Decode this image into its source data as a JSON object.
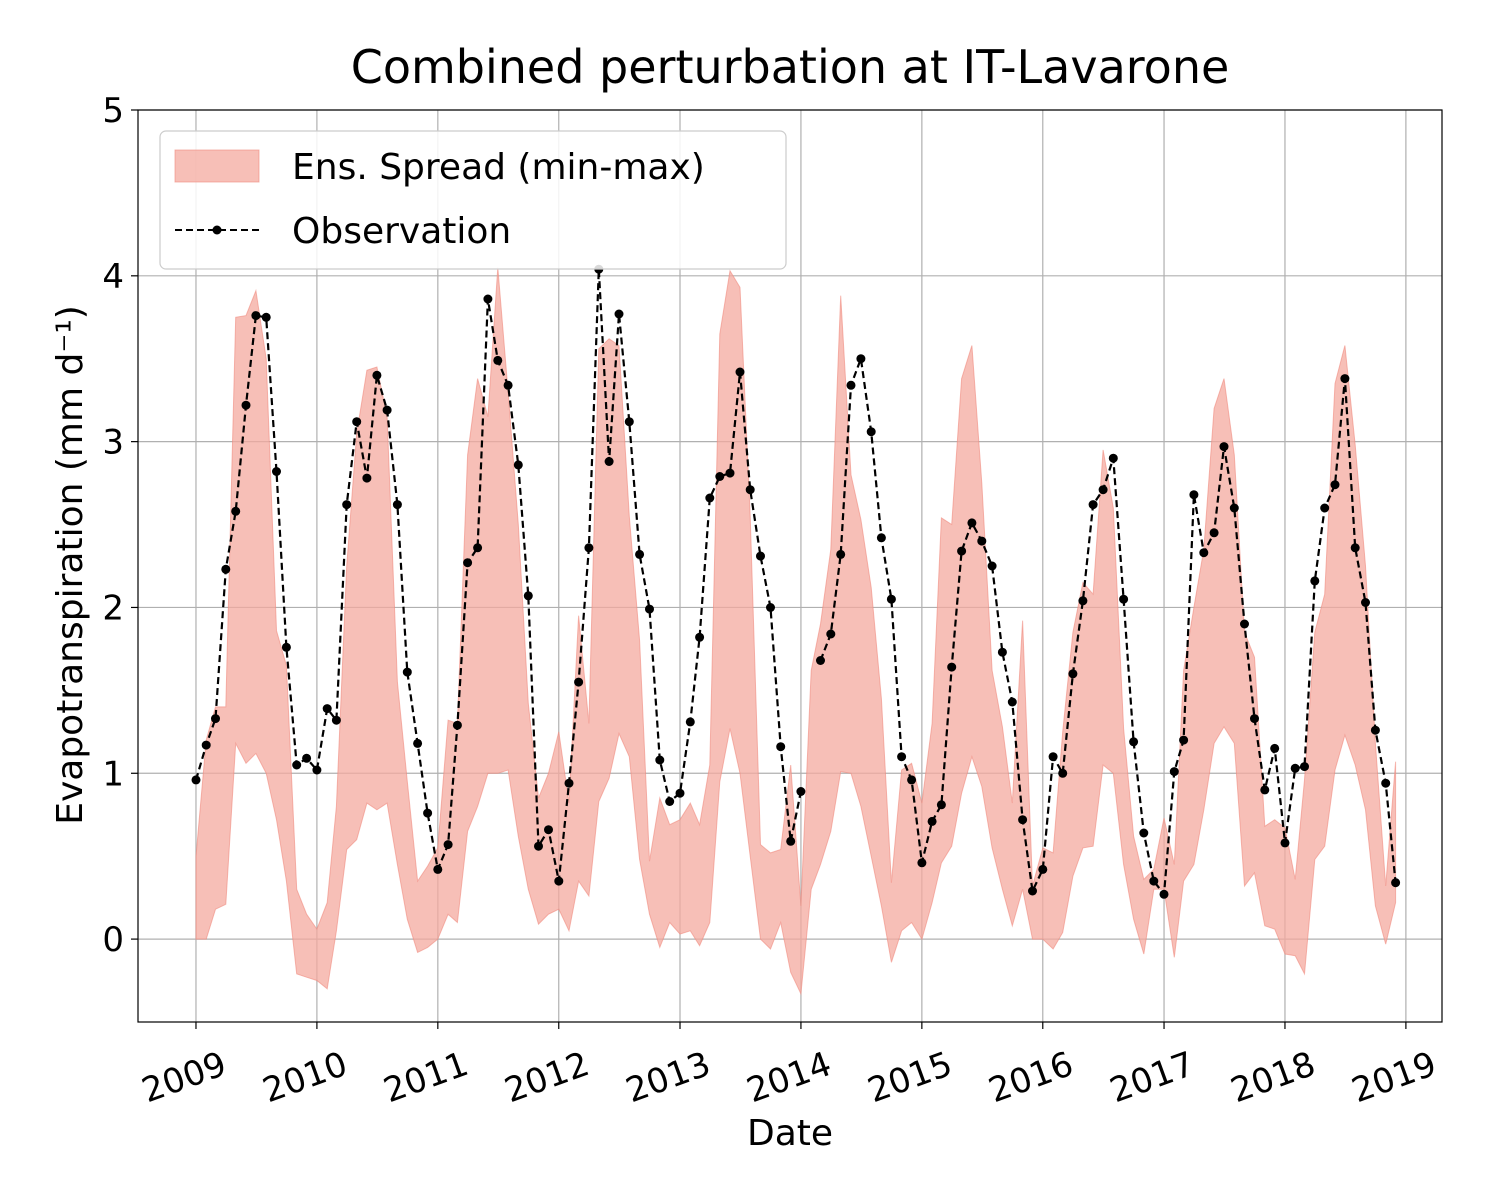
{
  "chart_data": {
    "type": "line",
    "title": "Combined perturbation at IT-Lavarone",
    "xlabel": "Date",
    "ylabel": "Evapotranspiration  (mm d⁻¹)",
    "xlim": [
      "2008-07-10",
      "2019-04-20"
    ],
    "ylim": [
      -0.5,
      5
    ],
    "yticks": [
      0,
      1,
      2,
      3,
      4,
      5
    ],
    "xticks": [
      "2009-01-01",
      "2010-01-01",
      "2011-01-01",
      "2012-01-01",
      "2013-01-01",
      "2014-01-01",
      "2015-01-01",
      "2016-01-01",
      "2017-01-01",
      "2018-01-01",
      "2019-01-01"
    ],
    "xtick_labels": [
      "2009",
      "2010",
      "2011",
      "2012",
      "2013",
      "2014",
      "2015",
      "2016",
      "2017",
      "2018",
      "2019"
    ],
    "grid": true,
    "legend": {
      "placement": "upper-left",
      "entries": [
        {
          "label": "Ens. Spread (min-max)",
          "style": "fill"
        },
        {
          "label": "Observation",
          "style": "dashed-line-dots"
        }
      ]
    },
    "colors": {
      "spread_fill": "#f4a99f",
      "spread_edge": "#f08a7e",
      "observation": "#000000",
      "grid": "#b0b0b0"
    },
    "series": [
      {
        "name": "Ens. Spread (min-max)",
        "kind": "band",
        "x": [
          "2009-01",
          "2009-02",
          "2009-03",
          "2009-04",
          "2009-05",
          "2009-06",
          "2009-07",
          "2009-08",
          "2009-09",
          "2009-10",
          "2009-11",
          "2009-12",
          "2010-01",
          "2010-02",
          "2010-03",
          "2010-04",
          "2010-05",
          "2010-06",
          "2010-07",
          "2010-08",
          "2010-09",
          "2010-10",
          "2010-11",
          "2010-12",
          "2011-01",
          "2011-02",
          "2011-03",
          "2011-04",
          "2011-05",
          "2011-06",
          "2011-07",
          "2011-08",
          "2011-09",
          "2011-10",
          "2011-11",
          "2011-12",
          "2012-01",
          "2012-02",
          "2012-03",
          "2012-04",
          "2012-05",
          "2012-06",
          "2012-07",
          "2012-08",
          "2012-09",
          "2012-10",
          "2012-11",
          "2012-12",
          "2013-01",
          "2013-02",
          "2013-03",
          "2013-04",
          "2013-05",
          "2013-06",
          "2013-07",
          "2013-08",
          "2013-09",
          "2013-10",
          "2013-11",
          "2013-12",
          "2014-01",
          "2014-02",
          "2014-03",
          "2014-04",
          "2014-05",
          "2014-06",
          "2014-07",
          "2014-08",
          "2014-09",
          "2014-10",
          "2014-11",
          "2014-12",
          "2015-01",
          "2015-02",
          "2015-03",
          "2015-04",
          "2015-05",
          "2015-06",
          "2015-07",
          "2015-08",
          "2015-09",
          "2015-10",
          "2015-11",
          "2015-12",
          "2016-01",
          "2016-02",
          "2016-03",
          "2016-04",
          "2016-05",
          "2016-06",
          "2016-07",
          "2016-08",
          "2016-09",
          "2016-10",
          "2016-11",
          "2016-12",
          "2017-01",
          "2017-02",
          "2017-03",
          "2017-04",
          "2017-05",
          "2017-06",
          "2017-07",
          "2017-08",
          "2017-09",
          "2017-10",
          "2017-11",
          "2017-12",
          "2018-01",
          "2018-02",
          "2018-03",
          "2018-04",
          "2018-05",
          "2018-06",
          "2018-07",
          "2018-08",
          "2018-09",
          "2018-10",
          "2018-11",
          "2018-12"
        ],
        "lower": [
          0.0,
          0.0,
          0.18,
          0.21,
          1.18,
          1.06,
          1.12,
          1.0,
          0.72,
          0.35,
          -0.21,
          -0.23,
          -0.25,
          -0.3,
          0.05,
          0.54,
          0.6,
          0.82,
          0.78,
          0.82,
          0.45,
          0.12,
          -0.08,
          -0.05,
          0.0,
          0.15,
          0.1,
          0.65,
          0.8,
          1.0,
          1.0,
          1.02,
          0.62,
          0.3,
          0.09,
          0.15,
          0.18,
          0.05,
          0.35,
          0.26,
          0.83,
          0.97,
          1.24,
          1.1,
          0.48,
          0.15,
          -0.05,
          0.1,
          0.03,
          0.05,
          -0.04,
          0.1,
          0.95,
          1.27,
          1.0,
          0.5,
          0.0,
          -0.06,
          0.1,
          -0.2,
          -0.33,
          0.3,
          0.45,
          0.65,
          1.01,
          1.0,
          0.8,
          0.5,
          0.2,
          -0.14,
          0.05,
          0.1,
          0.0,
          0.22,
          0.46,
          0.56,
          0.88,
          1.1,
          0.92,
          0.55,
          0.3,
          0.08,
          0.3,
          -0.0,
          0.0,
          -0.06,
          0.04,
          0.38,
          0.55,
          0.56,
          1.05,
          1.0,
          0.45,
          0.12,
          -0.09,
          0.3,
          0.3,
          -0.11,
          0.35,
          0.45,
          0.78,
          1.18,
          1.28,
          1.18,
          0.32,
          0.4,
          0.08,
          0.06,
          -0.09,
          -0.1,
          -0.21,
          0.48,
          0.56,
          1.02,
          1.23,
          1.05,
          0.78,
          0.2,
          -0.03,
          0.22
        ],
        "upper": [
          0.5,
          1.2,
          1.4,
          1.4,
          3.75,
          3.76,
          3.91,
          3.5,
          1.86,
          1.65,
          0.3,
          0.15,
          0.06,
          0.22,
          0.8,
          2.25,
          3.05,
          3.43,
          3.45,
          3.15,
          1.55,
          0.95,
          0.35,
          0.44,
          0.55,
          1.32,
          1.3,
          2.92,
          3.38,
          3.15,
          4.05,
          3.3,
          2.5,
          1.42,
          0.85,
          1.0,
          1.25,
          0.82,
          1.95,
          1.3,
          3.56,
          3.62,
          3.58,
          2.55,
          1.8,
          0.47,
          0.85,
          0.69,
          0.72,
          0.82,
          0.69,
          1.05,
          3.65,
          4.03,
          3.93,
          2.55,
          0.57,
          0.52,
          0.54,
          1.05,
          0.2,
          1.62,
          1.9,
          2.35,
          3.88,
          2.8,
          2.53,
          2.12,
          1.45,
          0.34,
          1.02,
          1.06,
          0.82,
          1.3,
          2.54,
          2.5,
          3.38,
          3.58,
          2.75,
          1.62,
          1.28,
          0.82,
          1.92,
          0.32,
          0.55,
          0.52,
          1.25,
          1.85,
          2.15,
          2.08,
          2.95,
          2.6,
          1.27,
          0.62,
          0.36,
          0.42,
          0.73,
          0.45,
          1.62,
          2.0,
          2.35,
          3.2,
          3.38,
          2.92,
          1.85,
          1.7,
          0.68,
          0.72,
          0.67,
          0.36,
          0.96,
          1.85,
          2.08,
          3.35,
          3.58,
          2.98,
          2.25,
          1.18,
          0.32,
          1.07
        ]
      },
      {
        "name": "Observation",
        "kind": "line",
        "x": [
          "2009-01",
          "2009-02",
          "2009-03",
          "2009-04",
          "2009-05",
          "2009-06",
          "2009-07",
          "2009-08",
          "2009-09",
          "2009-10",
          "2009-11",
          "2009-12",
          "2010-01",
          "2010-02",
          "2010-03",
          "2010-04",
          "2010-05",
          "2010-06",
          "2010-07",
          "2010-08",
          "2010-09",
          "2010-10",
          "2010-11",
          "2010-12",
          "2011-01",
          "2011-02",
          "2011-03",
          "2011-04",
          "2011-05",
          "2011-06",
          "2011-07",
          "2011-08",
          "2011-09",
          "2011-10",
          "2011-11",
          "2011-12",
          "2012-01",
          "2012-02",
          "2012-03",
          "2012-04",
          "2012-05",
          "2012-06",
          "2012-07",
          "2012-08",
          "2012-09",
          "2012-10",
          "2012-11",
          "2012-12",
          "2013-01",
          "2013-02",
          "2013-03",
          "2013-04",
          "2013-05",
          "2013-06",
          "2013-07",
          "2013-08",
          "2013-09",
          "2013-10",
          "2013-11",
          "2013-12",
          "2014-01",
          "2014-02",
          "2014-03",
          "2014-04",
          "2014-05",
          "2014-06",
          "2014-07",
          "2014-08",
          "2014-09",
          "2014-10",
          "2014-11",
          "2014-12",
          "2015-01",
          "2015-02",
          "2015-03",
          "2015-04",
          "2015-05",
          "2015-06",
          "2015-07",
          "2015-08",
          "2015-09",
          "2015-10",
          "2015-11",
          "2015-12",
          "2016-01",
          "2016-02",
          "2016-03",
          "2016-04",
          "2016-05",
          "2016-06",
          "2016-07",
          "2016-08",
          "2016-09",
          "2016-10",
          "2016-11",
          "2016-12",
          "2017-01",
          "2017-02",
          "2017-03",
          "2017-04",
          "2017-05",
          "2017-06",
          "2017-07",
          "2017-08",
          "2017-09",
          "2017-10",
          "2017-11",
          "2017-12",
          "2018-01",
          "2018-02",
          "2018-03",
          "2018-04",
          "2018-05",
          "2018-06",
          "2018-07",
          "2018-08",
          "2018-09",
          "2018-10",
          "2018-11",
          "2018-12"
        ],
        "y": [
          0.96,
          1.17,
          1.33,
          2.23,
          2.58,
          3.22,
          3.76,
          3.75,
          2.82,
          1.76,
          1.05,
          1.09,
          1.02,
          1.39,
          1.32,
          2.62,
          3.12,
          2.78,
          3.4,
          3.19,
          2.62,
          1.61,
          1.18,
          0.76,
          0.42,
          0.57,
          1.29,
          2.27,
          2.36,
          3.86,
          3.49,
          3.34,
          2.86,
          2.07,
          0.56,
          0.66,
          0.35,
          0.94,
          1.55,
          2.36,
          4.04,
          2.88,
          3.77,
          3.12,
          2.32,
          1.99,
          1.08,
          0.83,
          0.88,
          1.31,
          1.82,
          2.66,
          2.79,
          2.81,
          3.42,
          2.71,
          2.31,
          2.0,
          1.16,
          0.59,
          0.89,
          null,
          1.68,
          1.84,
          2.32,
          3.34,
          3.5,
          3.06,
          2.42,
          2.05,
          1.1,
          0.96,
          0.46,
          0.71,
          0.81,
          1.64,
          2.34,
          2.51,
          2.4,
          2.25,
          1.73,
          1.43,
          0.72,
          0.29,
          0.42,
          1.1,
          1.0,
          1.6,
          2.04,
          2.62,
          2.71,
          2.9,
          2.05,
          1.19,
          0.64,
          0.35,
          0.27,
          1.01,
          1.2,
          2.68,
          2.33,
          2.45,
          2.97,
          2.6,
          1.9,
          1.33,
          0.9,
          1.15,
          0.58,
          1.03,
          1.04,
          2.16,
          2.6,
          2.74,
          3.38,
          2.36,
          2.03,
          1.26,
          0.94,
          0.34
        ]
      }
    ]
  }
}
